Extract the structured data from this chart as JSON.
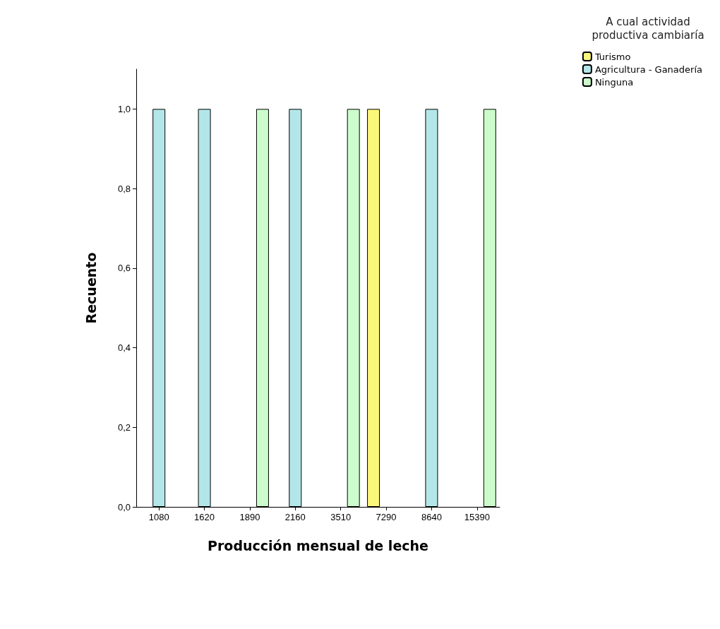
{
  "chart_data": {
    "type": "bar",
    "xlabel": "Producción mensual de leche",
    "ylabel": "Recuento",
    "legend_title": "A cual actividad\nproductiva cambiaría",
    "categories": [
      "1080",
      "1620",
      "1890",
      "2160",
      "3510",
      "7290",
      "8640",
      "15390"
    ],
    "series": [
      {
        "name": "Turismo",
        "color": "#faf77a",
        "values": [
          null,
          null,
          null,
          null,
          null,
          1,
          null,
          null
        ]
      },
      {
        "name": "Agricultura - Ganadería",
        "color": "#b3e6e8",
        "values": [
          1,
          1,
          null,
          1,
          null,
          null,
          1,
          null
        ]
      },
      {
        "name": "Ninguna",
        "color": "#ccfccc",
        "values": [
          null,
          null,
          1,
          null,
          1,
          null,
          null,
          1
        ]
      }
    ],
    "ylim": [
      0,
      1.1
    ],
    "yticks": [
      {
        "value": 0,
        "label": "0,0"
      },
      {
        "value": 0.2,
        "label": "0,2"
      },
      {
        "value": 0.4,
        "label": "0,4"
      },
      {
        "value": 0.6,
        "label": "0,6"
      },
      {
        "value": 0.8,
        "label": "0,8"
      },
      {
        "value": 1,
        "label": "1,0"
      }
    ],
    "grid": false,
    "legend": "top right"
  }
}
